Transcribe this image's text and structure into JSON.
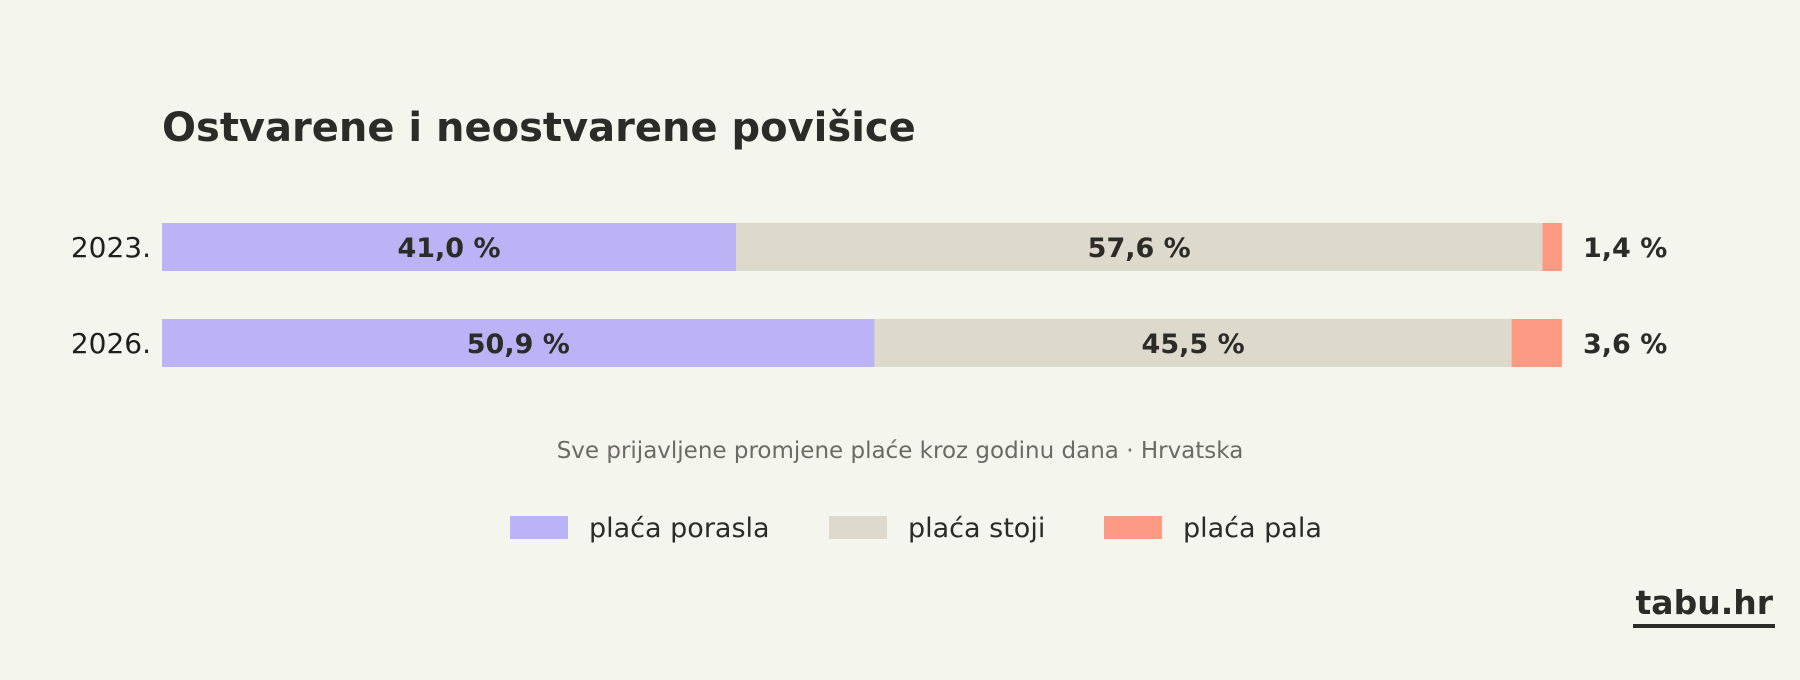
{
  "chart_data": {
    "type": "bar",
    "orientation": "horizontal",
    "stacked": true,
    "title": "Ostvarene i neostvarene povišice",
    "subtitle": "Sve prijavljene promjene plaće kroz godinu dana  ·  Hrvatska",
    "categories": [
      "2023.",
      "2026."
    ],
    "series": [
      {
        "name": "plaća porasla",
        "values": [
          41.0,
          50.9
        ],
        "labels": [
          "41,0 %",
          "50,9 %"
        ],
        "color": "#bbb3f6"
      },
      {
        "name": "plaća stoji",
        "values": [
          57.6,
          45.5
        ],
        "labels": [
          "57,6 %",
          "45,5 %"
        ],
        "color": "#ddd9cd"
      },
      {
        "name": "plaća pala",
        "values": [
          1.4,
          3.6
        ],
        "labels": [
          "1,4 %",
          "3,6 %"
        ],
        "color": "#fd9a83"
      }
    ],
    "xlim": [
      0,
      100
    ],
    "grid": false,
    "legend_position": "bottom-center"
  },
  "brand": "tabu.hr",
  "colors": {
    "background": "#f4f6ee",
    "text": "#2b2b27",
    "muted": "#6b6b64"
  }
}
